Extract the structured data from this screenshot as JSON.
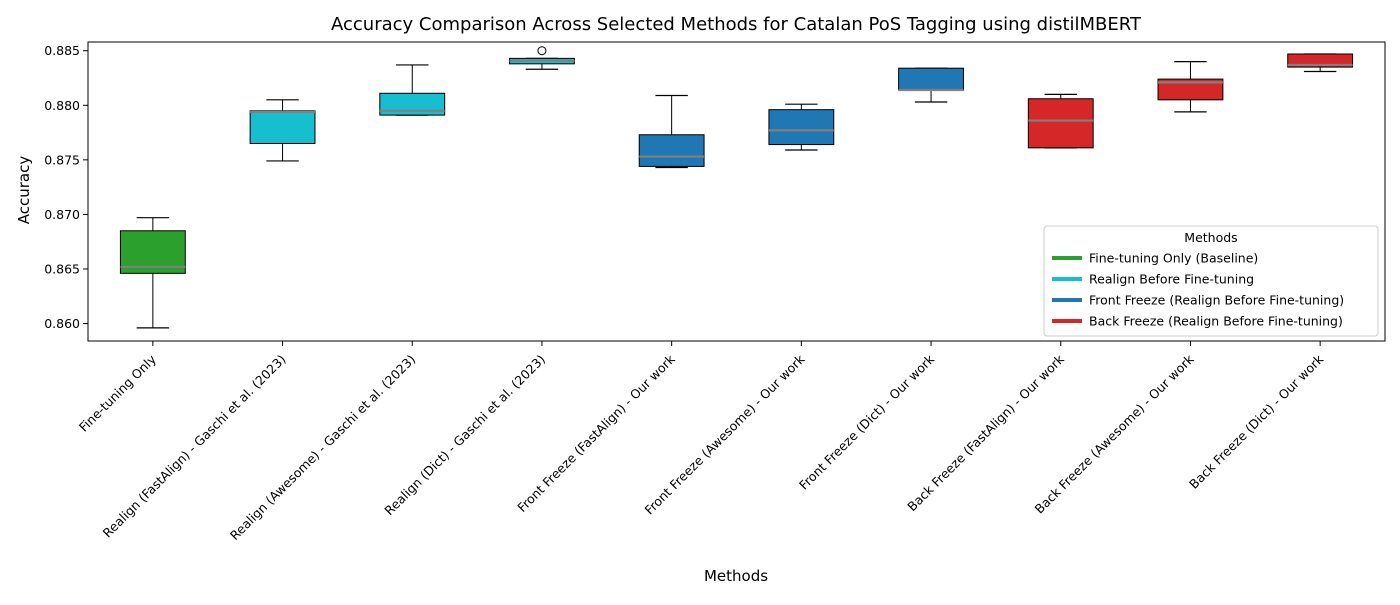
{
  "chart_data": {
    "type": "box",
    "title": "Accuracy Comparison Across Selected Methods for Catalan PoS Tagging using distilMBERT",
    "xlabel": "Methods",
    "ylabel": "Accuracy",
    "ylim": [
      0.8584,
      0.8858
    ],
    "yticks": [
      "0.860",
      "0.865",
      "0.870",
      "0.875",
      "0.880",
      "0.885"
    ],
    "grid": false,
    "legend": {
      "title": "Methods",
      "placement": "lower right",
      "entries": [
        {
          "label": "Fine-tuning Only (Baseline)",
          "color": "#2ca02c"
        },
        {
          "label": "Realign Before Fine-tuning",
          "color": "#17becf"
        },
        {
          "label": "Front Freeze (Realign Before Fine-tuning)",
          "color": "#1f77b4"
        },
        {
          "label": "Back Freeze (Realign Before Fine-tuning)",
          "color": "#d62728"
        }
      ]
    },
    "median_color": "#808080",
    "categories": [
      "Fine-tuning Only",
      "Realign (FastAlign) - Gaschi et al. (2023)",
      "Realign (Awesome) - Gaschi et al. (2023)",
      "Realign (Dict) - Gaschi et al. (2023)",
      "Front Freeze (FastAlign) - Our work",
      "Front Freeze (Awesome) - Our work",
      "Front Freeze (Dict) - Our work",
      "Back Freeze (FastAlign) - Our work",
      "Back Freeze (Awesome) - Our work",
      "Back Freeze (Dict) - Our work"
    ],
    "boxes": [
      {
        "group": 0,
        "whislo": 0.8596,
        "q1": 0.8646,
        "med": 0.8652,
        "q3": 0.8685,
        "whishi": 0.8697,
        "fliers": []
      },
      {
        "group": 1,
        "whislo": 0.8749,
        "q1": 0.8765,
        "med": 0.8794,
        "q3": 0.8795,
        "whishi": 0.8805,
        "fliers": []
      },
      {
        "group": 1,
        "whislo": 0.8791,
        "q1": 0.8791,
        "med": 0.8795,
        "q3": 0.8811,
        "whishi": 0.8837,
        "fliers": []
      },
      {
        "group": 1,
        "whislo": 0.8833,
        "q1": 0.8838,
        "med": 0.8841,
        "q3": 0.8843,
        "whishi": 0.8843,
        "fliers": [
          0.885
        ]
      },
      {
        "group": 2,
        "whislo": 0.8743,
        "q1": 0.8744,
        "med": 0.8753,
        "q3": 0.8773,
        "whishi": 0.8809,
        "fliers": []
      },
      {
        "group": 2,
        "whislo": 0.8759,
        "q1": 0.8764,
        "med": 0.8777,
        "q3": 0.8796,
        "whishi": 0.8801,
        "fliers": []
      },
      {
        "group": 2,
        "whislo": 0.8803,
        "q1": 0.8814,
        "med": 0.8814,
        "q3": 0.8834,
        "whishi": 0.8834,
        "fliers": []
      },
      {
        "group": 3,
        "whislo": 0.8761,
        "q1": 0.8761,
        "med": 0.8786,
        "q3": 0.8806,
        "whishi": 0.881,
        "fliers": []
      },
      {
        "group": 3,
        "whislo": 0.8794,
        "q1": 0.8805,
        "med": 0.8821,
        "q3": 0.8824,
        "whishi": 0.884,
        "fliers": []
      },
      {
        "group": 3,
        "whislo": 0.8831,
        "q1": 0.8835,
        "med": 0.8837,
        "q3": 0.8847,
        "whishi": 0.8847,
        "fliers": []
      }
    ]
  }
}
